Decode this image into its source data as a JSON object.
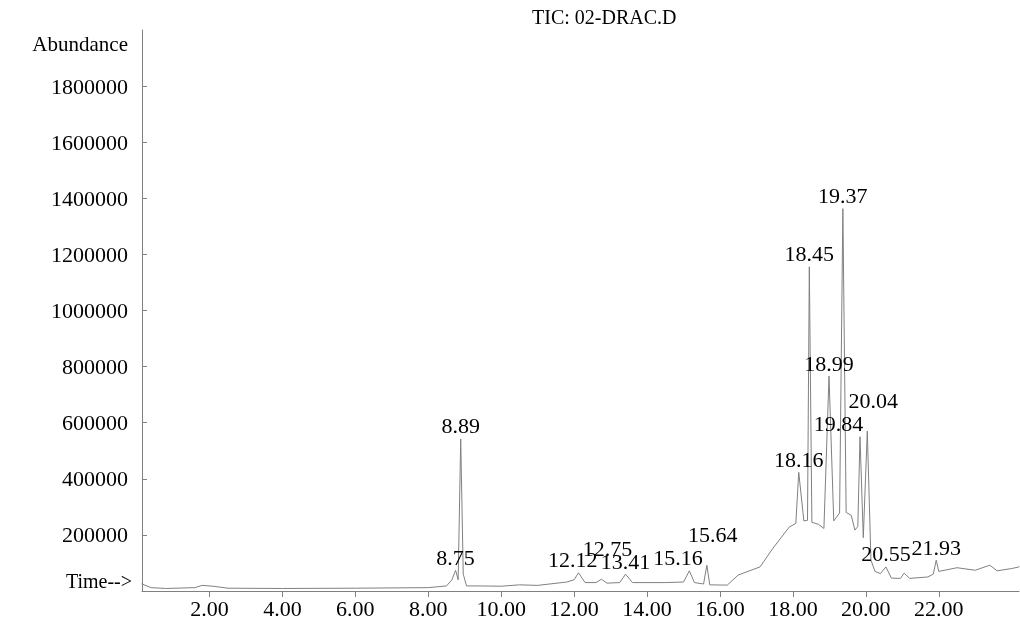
{
  "chart_data": {
    "type": "line",
    "title": "TIC: 02-DRAC.D",
    "xlabel": "Time-->",
    "ylabel": "Abundance",
    "x": [
      0.15,
      0.4,
      0.8,
      1.6,
      1.8,
      2.1,
      2.5,
      4.0,
      6.0,
      8.0,
      8.5,
      8.65,
      8.75,
      8.82,
      8.89,
      8.96,
      9.05,
      9.4,
      10.0,
      10.5,
      11.0,
      11.8,
      12.0,
      12.12,
      12.3,
      12.6,
      12.75,
      12.9,
      13.25,
      13.41,
      13.6,
      14.5,
      15.0,
      15.16,
      15.3,
      15.55,
      15.64,
      15.72,
      16.2,
      16.5,
      17.1,
      17.45,
      17.9,
      18.08,
      18.16,
      18.3,
      18.4,
      18.45,
      18.52,
      18.7,
      18.85,
      18.99,
      19.12,
      19.28,
      19.37,
      19.46,
      19.6,
      19.7,
      19.78,
      19.84,
      19.93,
      20.04,
      20.14,
      20.25,
      20.4,
      20.55,
      20.7,
      20.95,
      21.05,
      21.2,
      21.7,
      21.85,
      21.93,
      22.0,
      22.2,
      22.5,
      23.0,
      23.4,
      23.6,
      24.0,
      24.2
    ],
    "series": [
      {
        "color": "#808080",
        "values": [
          25000,
          12000,
          9000,
          12000,
          20000,
          17000,
          10000,
          9000,
          10000,
          12000,
          18000,
          40000,
          74000,
          40000,
          542000,
          60000,
          18000,
          18000,
          17000,
          22000,
          20000,
          32000,
          40000,
          65000,
          30000,
          30000,
          42000,
          28000,
          30000,
          60000,
          30000,
          30000,
          32000,
          72000,
          30000,
          25000,
          92000,
          22000,
          21000,
          57000,
          86000,
          152000,
          228000,
          241000,
          423000,
          250000,
          252000,
          1156000,
          245000,
          238000,
          223000,
          766000,
          250000,
          278000,
          1363000,
          280000,
          270000,
          217000,
          230000,
          550000,
          190000,
          570000,
          110000,
          70000,
          62000,
          86000,
          46000,
          45000,
          64000,
          45000,
          50000,
          60000,
          110000,
          70000,
          75000,
          83000,
          74000,
          92000,
          72000,
          80000,
          86000
        ]
      }
    ],
    "xlim": [
      0.15,
      24.2
    ],
    "xticks": [
      {
        "value": 2,
        "label": "2.00"
      },
      {
        "value": 4,
        "label": "4.00"
      },
      {
        "value": 6,
        "label": "6.00"
      },
      {
        "value": 8,
        "label": "8.00"
      },
      {
        "value": 10,
        "label": "10.00"
      },
      {
        "value": 12,
        "label": "12.00"
      },
      {
        "value": 14,
        "label": "14.00"
      },
      {
        "value": 16,
        "label": "16.00"
      },
      {
        "value": 18,
        "label": "18.00"
      },
      {
        "value": 20,
        "label": "20.00"
      },
      {
        "value": 22,
        "label": "22.00"
      }
    ],
    "ylim": [
      0,
      2000000
    ],
    "yticks": [
      200000,
      400000,
      600000,
      800000,
      1000000,
      1200000,
      1400000,
      1600000,
      1800000
    ],
    "annotations": [
      {
        "text": "8.75",
        "x": 8.75,
        "y": 74000
      },
      {
        "text": "8.89",
        "x": 8.89,
        "y": 542000
      },
      {
        "text": "12.12",
        "x": 12.12,
        "y": 65000
      },
      {
        "text": "12.75",
        "x": 12.75,
        "y": 42000
      },
      {
        "text": "13.41",
        "x": 13.41,
        "y": 60000
      },
      {
        "text": "15.16",
        "x": 15.16,
        "y": 72000
      },
      {
        "text": "15.64",
        "x": 15.64,
        "y": 92000
      },
      {
        "text": "18.16",
        "x": 18.16,
        "y": 423000
      },
      {
        "text": "18.45",
        "x": 18.45,
        "y": 1156000
      },
      {
        "text": "18.99",
        "x": 18.99,
        "y": 766000
      },
      {
        "text": "19.37",
        "x": 19.37,
        "y": 1363000
      },
      {
        "text": "19.84",
        "x": 19.84,
        "y": 550000
      },
      {
        "text": "20.04",
        "x": 20.04,
        "y": 570000
      },
      {
        "text": "20.55",
        "x": 20.55,
        "y": 86000
      },
      {
        "text": "21.93",
        "x": 21.93,
        "y": 110000
      }
    ],
    "marker": "none",
    "line_style": "solid"
  }
}
